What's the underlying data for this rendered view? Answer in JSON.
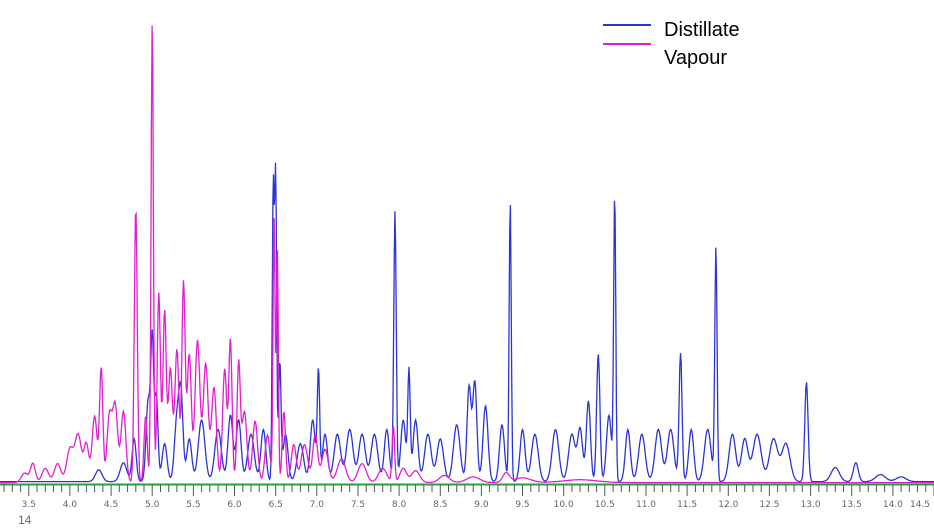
{
  "chart_data": {
    "type": "line",
    "title": "",
    "xlabel": "",
    "ylabel": "",
    "xlim": [
      3.15,
      14.5
    ],
    "ylim": [
      0,
      100
    ],
    "xticks": [
      "3.5",
      "4.0",
      "4.5",
      "5.0",
      "5.5",
      "6.0",
      "6.5",
      "7.0",
      "7.5",
      "8.0",
      "8.5",
      "9.0",
      "9.5",
      "10.0",
      "10.5",
      "11.0",
      "11.5",
      "12.0",
      "12.5",
      "13.0",
      "13.5",
      "14.0",
      "14.5"
    ],
    "legend": {
      "position": "top-right"
    },
    "series": [
      {
        "name": "Distillate",
        "color": "#2a35d6",
        "baseline": 0.5,
        "peaks": [
          [
            4.35,
            2.5,
            0.04
          ],
          [
            4.65,
            4,
            0.04
          ],
          [
            4.78,
            9,
            0.025
          ],
          [
            4.95,
            17,
            0.025
          ],
          [
            5.0,
            29,
            0.018
          ],
          [
            5.05,
            18,
            0.02
          ],
          [
            5.15,
            8,
            0.03
          ],
          [
            5.3,
            13,
            0.03
          ],
          [
            5.35,
            17,
            0.025
          ],
          [
            5.45,
            9,
            0.03
          ],
          [
            5.6,
            13,
            0.04
          ],
          [
            5.8,
            11,
            0.04
          ],
          [
            5.95,
            14,
            0.03
          ],
          [
            6.05,
            13,
            0.03
          ],
          [
            6.2,
            10,
            0.04
          ],
          [
            6.35,
            11,
            0.03
          ],
          [
            6.47,
            62,
            0.012
          ],
          [
            6.5,
            64,
            0.012
          ],
          [
            6.55,
            25,
            0.015
          ],
          [
            6.62,
            10,
            0.03
          ],
          [
            6.8,
            8,
            0.04
          ],
          [
            6.95,
            13,
            0.03
          ],
          [
            7.02,
            23,
            0.015
          ],
          [
            7.1,
            10,
            0.03
          ],
          [
            7.25,
            10,
            0.04
          ],
          [
            7.4,
            11,
            0.04
          ],
          [
            7.55,
            10,
            0.04
          ],
          [
            7.7,
            10,
            0.04
          ],
          [
            7.85,
            11,
            0.03
          ],
          [
            7.95,
            57,
            0.015
          ],
          [
            8.05,
            13,
            0.03
          ],
          [
            8.12,
            23,
            0.015
          ],
          [
            8.2,
            13,
            0.03
          ],
          [
            8.35,
            10,
            0.04
          ],
          [
            8.5,
            9,
            0.04
          ],
          [
            8.7,
            12,
            0.04
          ],
          [
            8.85,
            20,
            0.025
          ],
          [
            8.92,
            21,
            0.025
          ],
          [
            9.05,
            16,
            0.03
          ],
          [
            9.25,
            12,
            0.03
          ],
          [
            9.35,
            59,
            0.013
          ],
          [
            9.5,
            11,
            0.03
          ],
          [
            9.65,
            10,
            0.04
          ],
          [
            9.9,
            11,
            0.04
          ],
          [
            10.1,
            10,
            0.04
          ],
          [
            10.2,
            11,
            0.03
          ],
          [
            10.3,
            17,
            0.025
          ],
          [
            10.42,
            27,
            0.02
          ],
          [
            10.55,
            14,
            0.03
          ],
          [
            10.62,
            60,
            0.013
          ],
          [
            10.78,
            11,
            0.03
          ],
          [
            10.95,
            10,
            0.04
          ],
          [
            11.15,
            11,
            0.04
          ],
          [
            11.3,
            11,
            0.04
          ],
          [
            11.42,
            27,
            0.018
          ],
          [
            11.55,
            11,
            0.03
          ],
          [
            11.75,
            11,
            0.04
          ],
          [
            11.85,
            49,
            0.014
          ],
          [
            12.05,
            10,
            0.04
          ],
          [
            12.2,
            9,
            0.04
          ],
          [
            12.35,
            10,
            0.05
          ],
          [
            12.55,
            9,
            0.05
          ],
          [
            12.7,
            8,
            0.05
          ],
          [
            12.95,
            21,
            0.02
          ],
          [
            13.3,
            3,
            0.05
          ],
          [
            13.55,
            4,
            0.03
          ],
          [
            13.85,
            1.5,
            0.06
          ],
          [
            14.1,
            1,
            0.06
          ]
        ]
      },
      {
        "name": "Vapour",
        "color": "#e020d0",
        "baseline": 0.3,
        "peaks": [
          [
            3.45,
            2,
            0.04
          ],
          [
            3.55,
            4,
            0.03
          ],
          [
            3.7,
            3,
            0.04
          ],
          [
            3.85,
            4,
            0.04
          ],
          [
            4.0,
            7,
            0.04
          ],
          [
            4.1,
            10,
            0.04
          ],
          [
            4.2,
            8,
            0.03
          ],
          [
            4.3,
            14,
            0.03
          ],
          [
            4.38,
            24,
            0.02
          ],
          [
            4.48,
            14,
            0.03
          ],
          [
            4.55,
            16,
            0.03
          ],
          [
            4.65,
            15,
            0.03
          ],
          [
            4.8,
            58,
            0.018
          ],
          [
            4.92,
            14,
            0.02
          ],
          [
            5.0,
            97,
            0.014
          ],
          [
            5.08,
            40,
            0.02
          ],
          [
            5.15,
            36,
            0.02
          ],
          [
            5.22,
            24,
            0.025
          ],
          [
            5.3,
            28,
            0.025
          ],
          [
            5.38,
            42,
            0.02
          ],
          [
            5.45,
            27,
            0.025
          ],
          [
            5.55,
            30,
            0.03
          ],
          [
            5.65,
            25,
            0.03
          ],
          [
            5.75,
            20,
            0.03
          ],
          [
            5.88,
            24,
            0.025
          ],
          [
            5.95,
            30,
            0.02
          ],
          [
            6.05,
            25,
            0.02
          ],
          [
            6.12,
            15,
            0.03
          ],
          [
            6.25,
            13,
            0.03
          ],
          [
            6.4,
            10,
            0.03
          ],
          [
            6.48,
            56,
            0.012
          ],
          [
            6.52,
            50,
            0.012
          ],
          [
            6.6,
            15,
            0.02
          ],
          [
            6.72,
            8,
            0.03
          ],
          [
            6.85,
            8,
            0.04
          ],
          [
            6.98,
            10,
            0.03
          ],
          [
            7.1,
            7,
            0.04
          ],
          [
            7.3,
            5,
            0.05
          ],
          [
            7.55,
            4,
            0.05
          ],
          [
            7.8,
            3,
            0.05
          ],
          [
            7.93,
            12,
            0.015
          ],
          [
            8.05,
            3,
            0.04
          ],
          [
            8.2,
            2.5,
            0.05
          ],
          [
            8.55,
            1.5,
            0.06
          ],
          [
            8.9,
            1.2,
            0.08
          ],
          [
            9.3,
            2,
            0.04
          ],
          [
            9.5,
            1,
            0.1
          ],
          [
            10.2,
            0.6,
            0.2
          ]
        ]
      }
    ]
  },
  "legend": {
    "items": [
      "Distillate",
      "Vapour"
    ]
  },
  "footer": {
    "text": "14"
  }
}
